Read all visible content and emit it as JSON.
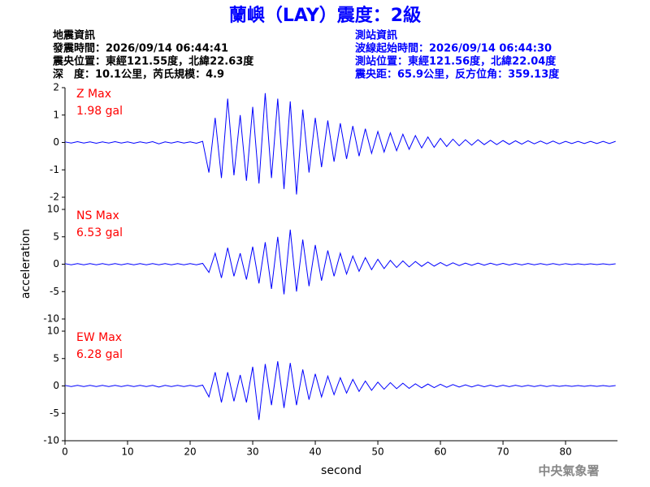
{
  "header": {
    "title": "蘭嶼（LAY）震度：2級",
    "left": [
      "地震資訊",
      "發震時間：2026/09/14 06:44:41",
      "震央位置：東經121.55度，北緯22.63度",
      "深　度：10.1公里，芮氏規模：4.9"
    ],
    "right": [
      "測站資訊",
      "波線起始時間：2026/09/14 06:44:30",
      "測站位置：東經121.56度，北緯22.04度",
      "震央距：65.9公里，反方位角：359.13度"
    ]
  },
  "y_label": "acceleration",
  "footer": "中央氣象署",
  "chart_data": [
    {
      "type": "line",
      "annotations": [
        "Z Max",
        "1.98 gal"
      ],
      "annotation_color": "#ff0000",
      "color": "#0000ff",
      "xlim": [
        0,
        88.3
      ],
      "ylim": [
        -2,
        2
      ],
      "yticks": [
        -2,
        -1,
        0,
        1,
        2
      ],
      "x": [
        0,
        1,
        2,
        3,
        4,
        5,
        6,
        7,
        8,
        9,
        10,
        11,
        12,
        13,
        14,
        15,
        16,
        17,
        18,
        19,
        20,
        21,
        22,
        23,
        24,
        25,
        26,
        27,
        28,
        29,
        30,
        31,
        32,
        33,
        34,
        35,
        36,
        37,
        38,
        39,
        40,
        41,
        42,
        43,
        44,
        45,
        46,
        47,
        48,
        49,
        50,
        51,
        52,
        53,
        54,
        55,
        56,
        57,
        58,
        59,
        60,
        61,
        62,
        63,
        64,
        65,
        66,
        67,
        68,
        69,
        70,
        71,
        72,
        73,
        74,
        75,
        76,
        77,
        78,
        79,
        80,
        81,
        82,
        83,
        84,
        85,
        86,
        87,
        88
      ],
      "values": [
        0.02,
        -0.02,
        0.03,
        -0.02,
        0.02,
        -0.03,
        0.02,
        -0.02,
        0.03,
        -0.02,
        0.02,
        -0.03,
        0.02,
        -0.02,
        0.03,
        -0.05,
        0.02,
        -0.02,
        0.03,
        -0.02,
        0.02,
        -0.03,
        0.04,
        -1.1,
        0.9,
        -1.3,
        1.6,
        -1.2,
        1.0,
        -1.4,
        1.3,
        -1.5,
        1.8,
        -1.3,
        1.6,
        -1.7,
        1.5,
        -1.9,
        1.2,
        -1.1,
        0.9,
        -0.9,
        0.8,
        -0.7,
        0.7,
        -0.6,
        0.6,
        -0.5,
        0.5,
        -0.4,
        0.4,
        -0.35,
        0.35,
        -0.3,
        0.3,
        -0.25,
        0.25,
        -0.2,
        0.2,
        -0.18,
        0.15,
        -0.15,
        0.12,
        -0.12,
        0.1,
        -0.1,
        0.1,
        -0.08,
        0.08,
        -0.08,
        0.07,
        -0.07,
        0.06,
        -0.06,
        0.06,
        -0.05,
        0.05,
        -0.05,
        0.05,
        -0.05,
        0.04,
        -0.04,
        0.04,
        -0.04,
        0.04,
        -0.04,
        0.04,
        -0.04,
        0.04
      ]
    },
    {
      "type": "line",
      "annotations": [
        "NS Max",
        "6.53 gal"
      ],
      "annotation_color": "#ff0000",
      "color": "#0000ff",
      "xlim": [
        0,
        88.3
      ],
      "ylim": [
        -10,
        10
      ],
      "yticks": [
        -10,
        -5,
        0,
        5,
        10
      ],
      "x": [
        0,
        1,
        2,
        3,
        4,
        5,
        6,
        7,
        8,
        9,
        10,
        11,
        12,
        13,
        14,
        15,
        16,
        17,
        18,
        19,
        20,
        21,
        22,
        23,
        24,
        25,
        26,
        27,
        28,
        29,
        30,
        31,
        32,
        33,
        34,
        35,
        36,
        37,
        38,
        39,
        40,
        41,
        42,
        43,
        44,
        45,
        46,
        47,
        48,
        49,
        50,
        51,
        52,
        53,
        54,
        55,
        56,
        57,
        58,
        59,
        60,
        61,
        62,
        63,
        64,
        65,
        66,
        67,
        68,
        69,
        70,
        71,
        72,
        73,
        74,
        75,
        76,
        77,
        78,
        79,
        80,
        81,
        82,
        83,
        84,
        85,
        86,
        87,
        88
      ],
      "values": [
        0.1,
        -0.1,
        0.1,
        -0.1,
        0.1,
        -0.1,
        0.1,
        -0.1,
        0.1,
        -0.1,
        0.1,
        -0.1,
        0.1,
        -0.1,
        0.1,
        -0.1,
        0.1,
        -0.1,
        0.1,
        -0.1,
        0.1,
        -0.1,
        0.15,
        -1.5,
        2.0,
        -2.5,
        3.0,
        -2.2,
        2.0,
        -2.8,
        3.2,
        -3.5,
        4.0,
        -4.5,
        5.0,
        -5.5,
        6.3,
        -5.0,
        4.5,
        -4.0,
        3.5,
        -3.0,
        2.5,
        -2.2,
        2.0,
        -1.8,
        1.5,
        -1.3,
        1.2,
        -1.0,
        0.9,
        -0.8,
        0.7,
        -0.6,
        0.6,
        -0.5,
        0.5,
        -0.4,
        0.4,
        -0.35,
        0.3,
        -0.3,
        0.25,
        -0.25,
        0.2,
        -0.2,
        0.2,
        -0.18,
        0.18,
        -0.15,
        0.15,
        -0.15,
        0.12,
        -0.12,
        0.12,
        -0.1,
        0.1,
        -0.1,
        0.1,
        -0.1,
        0.1,
        -0.08,
        0.08,
        -0.08,
        0.08,
        -0.08,
        0.08,
        -0.08,
        0.08
      ]
    },
    {
      "type": "line",
      "annotations": [
        "EW Max",
        "6.28 gal"
      ],
      "annotation_color": "#ff0000",
      "color": "#0000ff",
      "xlim": [
        0,
        88.3
      ],
      "ylim": [
        -10,
        10
      ],
      "yticks": [
        -10,
        -5,
        0,
        5,
        10
      ],
      "xticks": [
        0,
        10,
        20,
        30,
        40,
        50,
        60,
        70,
        80
      ],
      "xlabel": "second",
      "x": [
        0,
        1,
        2,
        3,
        4,
        5,
        6,
        7,
        8,
        9,
        10,
        11,
        12,
        13,
        14,
        15,
        16,
        17,
        18,
        19,
        20,
        21,
        22,
        23,
        24,
        25,
        26,
        27,
        28,
        29,
        30,
        31,
        32,
        33,
        34,
        35,
        36,
        37,
        38,
        39,
        40,
        41,
        42,
        43,
        44,
        45,
        46,
        47,
        48,
        49,
        50,
        51,
        52,
        53,
        54,
        55,
        56,
        57,
        58,
        59,
        60,
        61,
        62,
        63,
        64,
        65,
        66,
        67,
        68,
        69,
        70,
        71,
        72,
        73,
        74,
        75,
        76,
        77,
        78,
        79,
        80,
        81,
        82,
        83,
        84,
        85,
        86,
        87,
        88
      ],
      "values": [
        0.1,
        -0.1,
        0.1,
        -0.1,
        0.1,
        -0.1,
        0.1,
        -0.1,
        0.1,
        -0.1,
        0.1,
        -0.1,
        0.1,
        -0.1,
        0.1,
        -0.2,
        0.1,
        -0.1,
        0.1,
        -0.1,
        0.1,
        -0.1,
        0.15,
        -2.0,
        2.5,
        -3.0,
        2.5,
        -2.8,
        2.0,
        -3.0,
        3.5,
        -6.2,
        4.0,
        -3.5,
        4.5,
        -4.0,
        4.2,
        -3.5,
        3.0,
        -2.5,
        2.2,
        -2.0,
        1.8,
        -1.6,
        1.5,
        -1.3,
        1.2,
        -1.0,
        0.9,
        -0.8,
        0.7,
        -0.6,
        0.6,
        -0.5,
        0.5,
        -0.45,
        0.4,
        -0.35,
        0.35,
        -0.3,
        0.3,
        -0.25,
        0.25,
        -0.2,
        0.2,
        -0.18,
        0.18,
        -0.15,
        0.15,
        -0.15,
        0.12,
        -0.12,
        0.12,
        -0.1,
        0.1,
        -0.1,
        0.1,
        -0.1,
        0.1,
        -0.08,
        0.08,
        -0.08,
        0.08,
        -0.08,
        0.08,
        -0.08,
        0.08,
        -0.08,
        0.08
      ]
    }
  ]
}
